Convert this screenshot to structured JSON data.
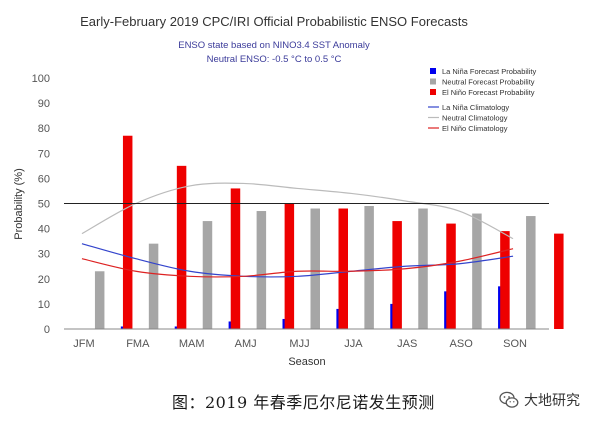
{
  "chart_data": {
    "type": "bar",
    "title": "Early-February 2019 CPC/IRI Official Probabilistic ENSO Forecasts",
    "subtitle_lines": [
      "ENSO state based on NINO3.4 SST Anomaly",
      "Neutral ENSO: -0.5 °C to 0.5 °C"
    ],
    "xlabel": "Season",
    "ylabel": "Probability (%)",
    "ylim": [
      0,
      100
    ],
    "yticks": [
      0,
      10,
      20,
      30,
      40,
      50,
      60,
      70,
      80,
      90,
      100
    ],
    "reference_line": 50,
    "categories": [
      "JFM",
      "FMA",
      "MAM",
      "AMJ",
      "MJJ",
      "JJA",
      "JAS",
      "ASO",
      "SON"
    ],
    "series": [
      {
        "name": "La Niña Forecast Probability",
        "color": "#0000ee",
        "values": [
          0,
          1,
          1,
          3,
          4,
          8,
          10,
          15,
          17
        ]
      },
      {
        "name": "Neutral Forecast Probability",
        "color": "#a6a6a6",
        "values": [
          23,
          34,
          43,
          47,
          48,
          49,
          48,
          46,
          45
        ]
      },
      {
        "name": "El Niño Forecast Probability",
        "color": "#ee0000",
        "values": [
          77,
          65,
          56,
          50,
          48,
          43,
          42,
          39,
          38
        ]
      }
    ],
    "climatology": [
      {
        "name": "La Niña Climatology",
        "color": "#3344cc",
        "values": [
          34,
          28,
          23,
          21,
          21,
          23,
          25,
          26,
          29
        ]
      },
      {
        "name": "Neutral Climatology",
        "color": "#bbbbbb",
        "values": [
          38,
          50,
          57,
          58,
          56,
          54,
          51,
          47,
          36
        ]
      },
      {
        "name": "El Niño Climatology",
        "color": "#dd2222",
        "values": [
          28,
          23,
          21,
          21,
          23,
          23,
          24,
          27,
          32
        ]
      }
    ],
    "legend_position": "top-right",
    "grid": false
  },
  "caption": "图：2019 年春季厄尔尼诺发生预测",
  "watermark": {
    "text": "大地研究",
    "icon": "wechat-logo-icon"
  }
}
